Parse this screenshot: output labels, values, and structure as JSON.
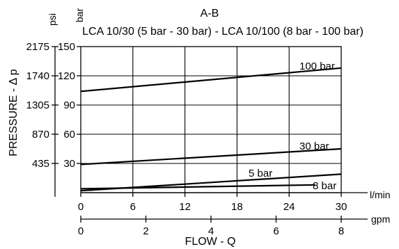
{
  "chart_data": {
    "type": "line",
    "title": "A-B",
    "subtitle": "LCA 10/30 (5 bar - 30 bar) - LCA 10/100 (8 bar - 100 bar)",
    "xlabel": "FLOW - Q",
    "ylabel": "PRESSURE - Δ p",
    "x_unit": "l/min",
    "x2_unit": "gpm",
    "y_unit": "bar",
    "y2_unit": "psi",
    "xlim": [
      0,
      30
    ],
    "ylim": [
      0,
      150
    ],
    "x_ticks": [
      0,
      6,
      12,
      18,
      24,
      30
    ],
    "x2_ticks": [
      {
        "label": "0",
        "lmin": 0
      },
      {
        "label": "2",
        "lmin": 7.5
      },
      {
        "label": "4",
        "lmin": 15
      },
      {
        "label": "6",
        "lmin": 22.5
      },
      {
        "label": "8",
        "lmin": 30
      }
    ],
    "y_ticks": [
      30,
      60,
      90,
      120,
      150
    ],
    "y2_ticks": [
      {
        "label": "435",
        "bar": 30
      },
      {
        "label": "870",
        "bar": 60
      },
      {
        "label": "1305",
        "bar": 90
      },
      {
        "label": "1740",
        "bar": 120
      },
      {
        "label": "2175",
        "bar": 150
      }
    ],
    "grid": true,
    "series": [
      {
        "name": "100 bar",
        "x": [
          0,
          30
        ],
        "y": [
          104,
          128
        ]
      },
      {
        "name": "30 bar",
        "x": [
          0,
          30
        ],
        "y": [
          29,
          45
        ]
      },
      {
        "name": "5 bar",
        "x": [
          0,
          30
        ],
        "y": [
          2,
          19
        ]
      },
      {
        "name": "8 bar",
        "x": [
          0,
          27
        ],
        "y": [
          4,
          8
        ]
      }
    ]
  }
}
